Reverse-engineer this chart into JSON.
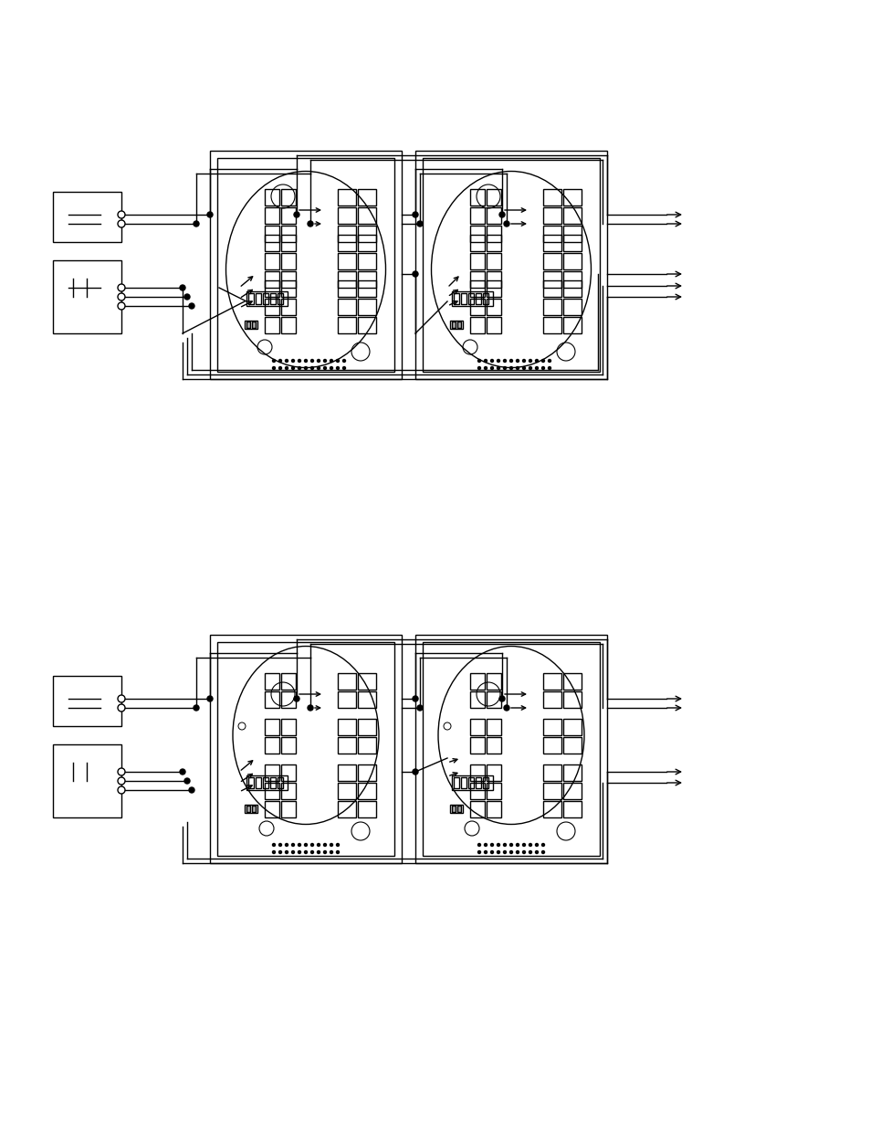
{
  "bg_color": "#ffffff",
  "line_color": "#000000",
  "line_width": 1.0,
  "diagram1_title": "",
  "diagram2_title": "",
  "page_width": 9.54,
  "page_height": 12.35
}
